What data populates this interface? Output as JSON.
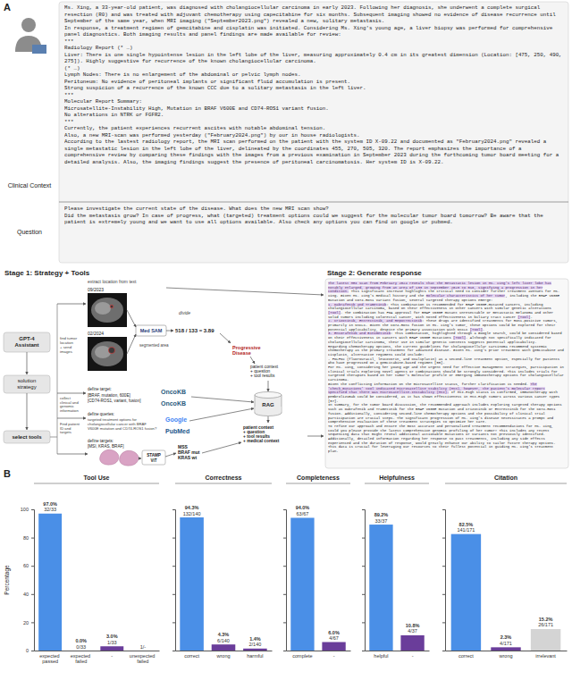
{
  "panel_a": {
    "label": "A",
    "clinical_context": {
      "label": "Clinical Context",
      "paragraphs": [
        "Ms. Xing, a 33-year-old patient, was diagnosed with cholangiocellular carcinoma in early 2023. Following her diagnosis, she underwent a complete surgical resection (R0) and was treated with adjuvant chemotherapy using capecitabine for six months. Subsequent imaging showed no evidence of disease recurrence until September of the same year, when MRI imaging (\"September2023.png\") revealed a new, solitary metastasis.",
        "In response, a treatment regimen of gemcitabine and cisplatin was initiated. Considering Ms. Xing's young age, a liver biopsy was performed for comprehensive panel diagnostics. Both imaging results and panel findings are made available for review:",
        "***",
        "Radiology Report (* …)",
        "Liver: There is one single hypointense lesion in the left lobe of the liver, measuring approximately 0.4 cm in its greatest dimension (Location: [475, 250, 490, 275]). Highly suggestive for recurrence of the known cholangiocellular carcinoma.",
        "(* …)",
        "Lymph Nodes: There is no enlargement of the abdominal or pelvic lymph nodes.",
        "Peritoneum: No evidence of peritoneal implants or significant fluid accumulation is present.",
        "Strong suspicion of a recurrence of the known CCC due to a solitary metastasis in the left liver.",
        "***",
        "Molecular Report Summary:",
        "Microsatellite-Instability High, Mutation in BRAF V600E and CD74-ROS1 variant fusion.",
        "No alterations in NTRK or FGFR2.",
        "***",
        "Currently, the patient experiences recurrent ascites with notable abdominal tension.",
        "Also, a new MRI-scan was performed yesterday (\"February2024.png\") by our in house radiologists.",
        "According to the lastest radiology report, the MRI scan performed on the patient with the system ID X-09.22 and documented as \"February2024.png\" revealed a single metastatic lesion in the left lobe of the liver, delineated by the coordinates 455, 270, 505, 320. The report emphasizes the importance of a comprehensive review by comparing these findings with the images from a previous examination in September 2023 during the forthcoming tumor board meeting for a detailed analysis. Also, the imaging findings suggest the presence of peritoneal carcinomatosis. Her system ID is X-09.22."
      ]
    },
    "question": {
      "label": "Question",
      "paragraphs": [
        "Please investigate the current state of the disease. What does the new MRI scan show?",
        "Did the metastasis grow? In case of progress, what (targeted) treatment options could we suggest for the molecular tumor board tomorrow? Be aware that the patient is extremely young and we want to use all options available. Also check any options you can find on google or pubmed."
      ]
    },
    "stage1": {
      "title": "Stage 1: Strategy + Tools",
      "assistant": [
        "GPT-4",
        "Assistant"
      ],
      "strategy": [
        "solution",
        "strategy"
      ],
      "select": "select tools",
      "branch_tumor": [
        "find tumor",
        "location",
        "+ send",
        "images"
      ],
      "branch_collect": [
        "collect",
        "clinical and",
        "genomic",
        "information"
      ],
      "branch_patient": [
        "Find patient",
        "ID and",
        "targets"
      ],
      "extract": "extract location from text",
      "date_1": "09/2023",
      "date_2": "02/2024",
      "medsam": "Med SAM",
      "segmented": "segmented area",
      "divide": "divide",
      "ratio": "518 / 133 = 3.89",
      "result": [
        "Progressive",
        "Disease"
      ],
      "define_target": [
        "define target:",
        "[BRAF, mutation, 600E]",
        "[CD74-ROS1, variant, fusion]"
      ],
      "oncokb": [
        "OncoKB",
        "OncoKB"
      ],
      "define_queries": "define queries:",
      "queries": [
        "targeted treatment options for",
        "cholangiocellular cancer with BRAF",
        "V600E mutation and CD74-ROS1 fusion?"
      ],
      "google": "Google",
      "pubmed": "PubMed",
      "define_targets": [
        "define targets:",
        "[MSI, KRAS, BRAF]"
      ],
      "stamp": [
        "STAMP",
        "ViT"
      ],
      "histology_result": [
        "MSS",
        "BRAF mut",
        "KRAS wt"
      ],
      "context_in": [
        "patient context",
        "+ question",
        "+ tool results"
      ],
      "rag": "RAG",
      "context_out": [
        "patient context",
        "+ question",
        "+ tool results",
        "+ medical context"
      ]
    },
    "stage2": {
      "title": "Stage 2: Generate response",
      "paragraphs": [
        [
          {
            "text": "The latest MRI scan from February 2024 reveals that the metastatic lesion in Ms. Xing's left liver lobe has notably enlarged, growing from an area of 133 in September 2023 to 518, signifying a progression in her condition.",
            "highlight": true
          },
          {
            "text": " This significant increase highlights the critical need to consider further treatment avenues for Ms. Xing. Given Ms. Xing's medical history and the "
          },
          {
            "text": "molecular characteristics of her tumor",
            "highlight": true
          },
          {
            "text": ", including the BRAF V600E mutation and CD74-ROS1 variant fusion, several targeted therapy options emerge:"
          }
        ],
        [
          {
            "text": "1. Dabrafenib and Trametinib",
            "highlight": true
          },
          {
            "text": ": This combination is recommended for BRAF V600E-mutated cancers, including cholangiocellular carcinoma, based on their effectiveness in other cancers with similar genetic alterations "
          },
          {
            "text": "[Tool]",
            "highlight": true
          },
          {
            "text": ". The combination has FDA approval for BRAF V600E mutant unresectable or metastatic melanoma and other solid tumors including colorectal cancer, with noted effectiveness in biliary tract cancer "
          },
          {
            "text": "[Tool]",
            "highlight": true
          },
          {
            "text": "."
          }
        ],
        [
          {
            "text": "2. Crizotinib, Entrectinib, and Repotrectinib",
            "highlight": true
          },
          {
            "text": ": These drugs are identified treatments for ROS1-positive tumors, primarily in NSCLC. Given the CD74-ROS1 fusion in Ms. Xing's tumor, these options could be explored for their potential applicability, despite the primary association with NSCLC "
          },
          {
            "text": "[Tool]",
            "highlight": true
          },
          {
            "text": "."
          }
        ],
        [
          {
            "text": "3. Encorafenib and Binimetinib",
            "highlight": true
          },
          {
            "text": ": This combination, highlighted through a Google search, could be considered based on their effectiveness in cancers with BRAF V600E mutations "
          },
          {
            "text": "[Tool]",
            "highlight": true
          },
          {
            "text": ". Although not specifically indicated for cholangiocellular carcinoma, their use in similar genetic contexts suggests potential applicability."
          }
        ],
        [
          {
            "text": "Regarding chemotherapy options, the current guidelines for cholangiocellular carcinoma recommend systemic chemotherapy as the primary treatment for advanced disease. Given Ms. Xing's prior treatment with gemcitabine and cisplatin, alternative regimens could include:"
          }
        ],
        [
          {
            "text": "- FOLFOX (fluorouracil, leucovorin, and oxaliplatin) as a second-line treatment option, especially for patients who have progressed on a gemcitabine-based regimen [55]."
          }
        ],
        [
          {
            "text": "For Ms. Xing, considering her young age and the urgent need for effective management strategies, participation in clinical trials exploring novel agents or combinations should be strongly considered. This includes trials for targeted therapies based on her tumor's molecular profile or emerging immunotherapy options for cholangiocellular carcinoma."
          }
        ],
        [
          {
            "text": "Given the conflicting information on the microsatellite status, further clarification is needed. "
          },
          {
            "text": "The 'check_mutations' tool indicated Microsatellite Stability (MSS), however, the patient's molecular report specified that there was Microsatellite-Instability (MSI).",
            "highlight": true
          },
          {
            "text": " If MSI-High status is confirmed, immunotherapy with pembrolizumab could be considered, as it has shown effectiveness in MSI-High tumors across various cancer types [57]."
          }
        ],
        [
          {
            "text": "In summary, for the tumor board discussion, the recommended approach includes exploring targeted therapy options such as Dabrafenib and Trametinib for the BRAF V600E mutation and Crizotinib or Entrectinib for the CD74-ROS1 fusion. Additionally, considering second-line chemotherapy options and the possibility of clinical trial participation are crucial steps. The significant progression of Ms. Xing's disease necessitates a prompt and comprehensive evaluation of these treatment strategies to optimize her care."
          }
        ],
        [
          {
            "text": "To refine our approach and ensure the most accurate and personalized treatment recommendations for Ms. Xing, could you please provide the latest comprehensive genomic profiling of her tumor? This includes any recent sequencing data that might reveal additional actionable mutations or variants not previously identified. Additionally, detailed information regarding her response to past treatments, including any side effects experienced and the duration of response, would greatly enhance our ability to tailor future therapy options. This data is crucial for leveraging our resources to their fullest potential in guiding Ms. Xing's treatment plan."
          }
        ]
      ]
    }
  },
  "panel_b_label": "B",
  "chart_data": [
    {
      "type": "bar",
      "title": "Tool Use",
      "categories": [
        "expected passed",
        "expected failed",
        "-",
        "unexpected failed"
      ],
      "values": [
        97.0,
        0.0,
        3.0,
        null
      ],
      "value_labels": [
        "97.0%",
        "0.0%",
        "3.0%",
        null
      ],
      "count_labels": [
        "32/33",
        "0/33",
        "1/33",
        "1/-"
      ],
      "colors": [
        "#4a8fe7",
        "#6a3d9a",
        "#6a3d9a",
        "#d4d4d4"
      ],
      "ylim": [
        0,
        100
      ],
      "yticks": [
        0,
        20,
        40,
        60,
        80,
        100
      ],
      "y_label": "Percentage",
      "data_labels": true
    },
    {
      "type": "bar",
      "title": "Correctness",
      "categories": [
        "correct",
        "wrong",
        "harmful"
      ],
      "values": [
        94.3,
        4.3,
        1.4
      ],
      "value_labels": [
        "94.3%",
        "4.3%",
        "1.4%"
      ],
      "count_labels": [
        "132/140",
        "6/140",
        "2/140"
      ],
      "colors": [
        "#4a8fe7",
        "#6a3d9a",
        "#6a3d9a"
      ],
      "ylim": [
        0,
        100
      ],
      "yticks": [
        0,
        20,
        40,
        60,
        80,
        100
      ],
      "data_labels": true,
      "tick_labels": "x"
    },
    {
      "type": "bar",
      "title": "Completeness",
      "categories": [
        "complete",
        "-"
      ],
      "values": [
        94.0,
        6.0
      ],
      "value_labels": [
        "94.0%",
        "6.0%"
      ],
      "count_labels": [
        "63/67",
        "4/67"
      ],
      "colors": [
        "#4a8fe7",
        "#6a3d9a"
      ],
      "ylim": [
        0,
        100
      ],
      "yticks": [
        0,
        20,
        40,
        60,
        80,
        100
      ],
      "data_labels": true,
      "tick_labels": "x"
    },
    {
      "type": "bar",
      "title": "Helpfulness",
      "categories": [
        "helpful",
        "-"
      ],
      "values": [
        89.2,
        10.8
      ],
      "value_labels": [
        "89.2%",
        "10.8%"
      ],
      "count_labels": [
        "33/37",
        "4/37"
      ],
      "colors": [
        "#4a8fe7",
        "#6a3d9a"
      ],
      "ylim": [
        0,
        100
      ],
      "yticks": [
        0,
        20,
        40,
        60,
        80,
        100
      ],
      "data_labels": true,
      "tick_labels": "x"
    },
    {
      "type": "bar",
      "title": "Citation",
      "categories": [
        "correct",
        "wrong",
        "irrelevant"
      ],
      "values": [
        82.5,
        2.3,
        15.2
      ],
      "value_labels": [
        "82.5%",
        "2.3%",
        "15.2%"
      ],
      "count_labels": [
        "141/171",
        "4/171",
        "26/171"
      ],
      "colors": [
        "#4a8fe7",
        "#6a3d9a",
        "#d4d4d4"
      ],
      "ylim": [
        0,
        100
      ],
      "yticks": [
        0,
        20,
        40,
        60,
        80,
        100
      ],
      "data_labels": true,
      "tick_labels": "x"
    }
  ]
}
